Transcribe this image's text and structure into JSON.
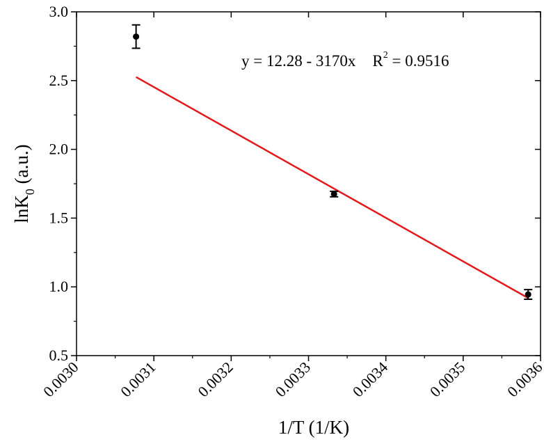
{
  "chart_data": {
    "type": "scatter",
    "xlabel": "1/T (1/K)",
    "ylabel_main": "lnK",
    "ylabel_sub": "0",
    "ylabel_unit": " (a.u.)",
    "xlim": [
      0.003,
      0.0036
    ],
    "ylim": [
      0.5,
      3.0
    ],
    "x_ticks": [
      "0.0030",
      "0.0031",
      "0.0032",
      "0.0033",
      "0.0034",
      "0.0035",
      "0.0036"
    ],
    "y_ticks": [
      "0.5",
      "1.0",
      "1.5",
      "2.0",
      "2.5",
      "3.0"
    ],
    "points": [
      {
        "x": 0.003077,
        "y": 2.82,
        "err": 0.085
      },
      {
        "x": 0.003333,
        "y": 1.675,
        "err": 0.02
      },
      {
        "x": 0.003584,
        "y": 0.945,
        "err": 0.035
      }
    ],
    "fit": {
      "intercept": 12.28,
      "slope": -3170,
      "x_range": [
        0.003077,
        0.003584
      ],
      "color": "#e31a1c"
    },
    "equation_prefix": "y = 12.28 - 3170x",
    "r2_label": "R",
    "r2_exp": "2",
    "r2_value": " = 0.9516",
    "grid": false
  }
}
